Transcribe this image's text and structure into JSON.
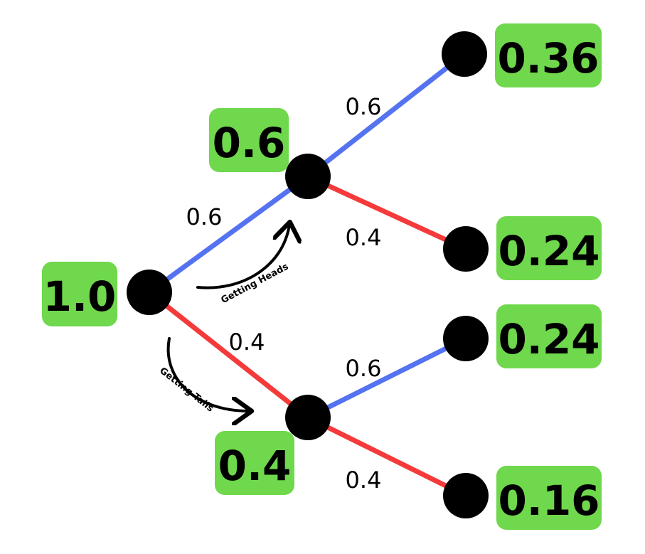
{
  "colors": {
    "heads_edge": "#5573f0",
    "tails_edge": "#f43a3a",
    "box_fill": "#6fd84c",
    "node_fill": "#000000"
  },
  "nodes": {
    "root": {
      "probability": "1.0"
    },
    "heads": {
      "probability": "0.6"
    },
    "tails": {
      "probability": "0.4"
    },
    "heads_heads": {
      "probability": "0.36"
    },
    "heads_tails": {
      "probability": "0.24"
    },
    "tails_heads": {
      "probability": "0.24"
    },
    "tails_tails": {
      "probability": "0.16"
    }
  },
  "edges": {
    "root_to_heads": "0.6",
    "root_to_tails": "0.4",
    "heads_to_heads_heads": "0.6",
    "heads_to_heads_tails": "0.4",
    "tails_to_tails_heads": "0.6",
    "tails_to_tails_tails": "0.4"
  },
  "arrows": {
    "heads_label": "Getting Heads",
    "tails_label": "Getting Tails"
  }
}
